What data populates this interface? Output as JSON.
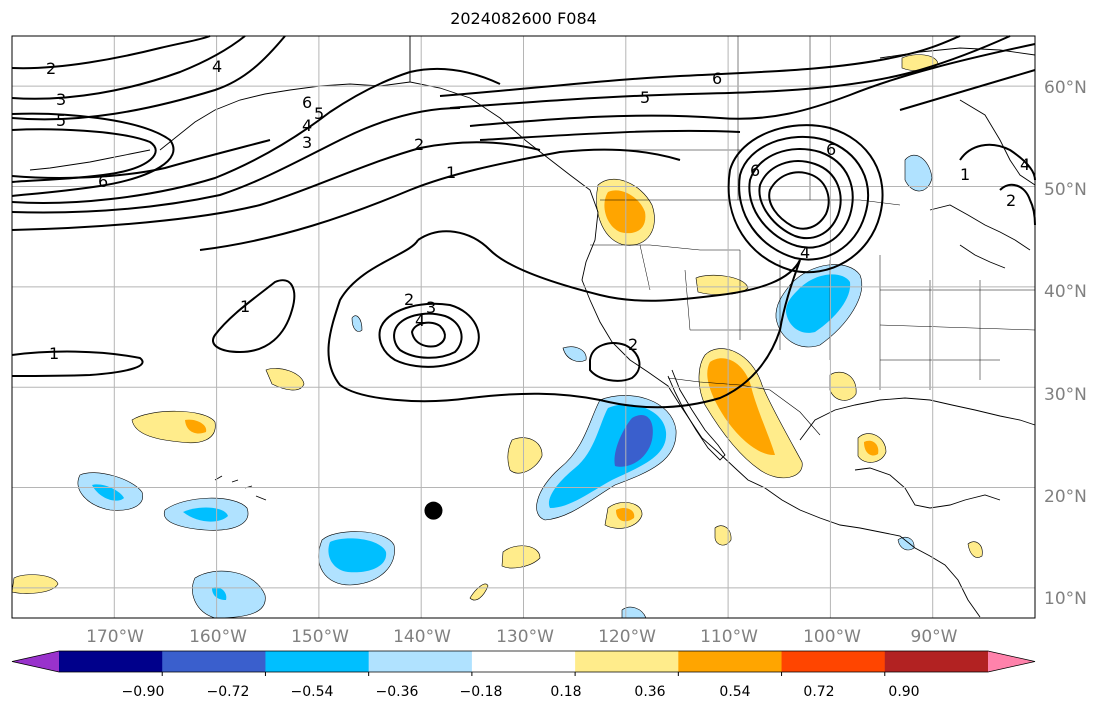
{
  "title": "2024082600 F084",
  "map": {
    "projection": "PlateCarree",
    "lon_range": [
      -180,
      -80
    ],
    "lat_range": [
      7,
      65
    ],
    "grid_lines": true,
    "lon_ticks": [
      "170°W",
      "160°W",
      "150°W",
      "140°W",
      "130°W",
      "120°W",
      "110°W",
      "100°W",
      "90°W"
    ],
    "lat_ticks": [
      "60°N",
      "50°N",
      "40°N",
      "30°N",
      "20°N",
      "10°N"
    ],
    "marker": {
      "lon": -138.8,
      "lat": 17.7,
      "color": "#000000"
    }
  },
  "contour_labels": [
    "2",
    "3",
    "5",
    "6",
    "4",
    "6",
    "5",
    "4",
    "3",
    "2",
    "1",
    "6",
    "5",
    "6",
    "1",
    "2",
    "2",
    "3",
    "4",
    "1",
    "1",
    "2",
    "6",
    "4",
    "4"
  ],
  "colorbar": {
    "ticks": [
      "−0.90",
      "−0.72",
      "−0.54",
      "−0.36",
      "−0.18",
      "0.18",
      "0.36",
      "0.54",
      "0.72",
      "0.90"
    ],
    "colors": [
      "#9932cc",
      "#00008b",
      "#3a5fcd",
      "#00bfff",
      "#b0e2ff",
      "#ffffff",
      "#ffec8b",
      "#ffa500",
      "#ff4500",
      "#b22222",
      "#ff82ab"
    ],
    "extend": "both"
  }
}
